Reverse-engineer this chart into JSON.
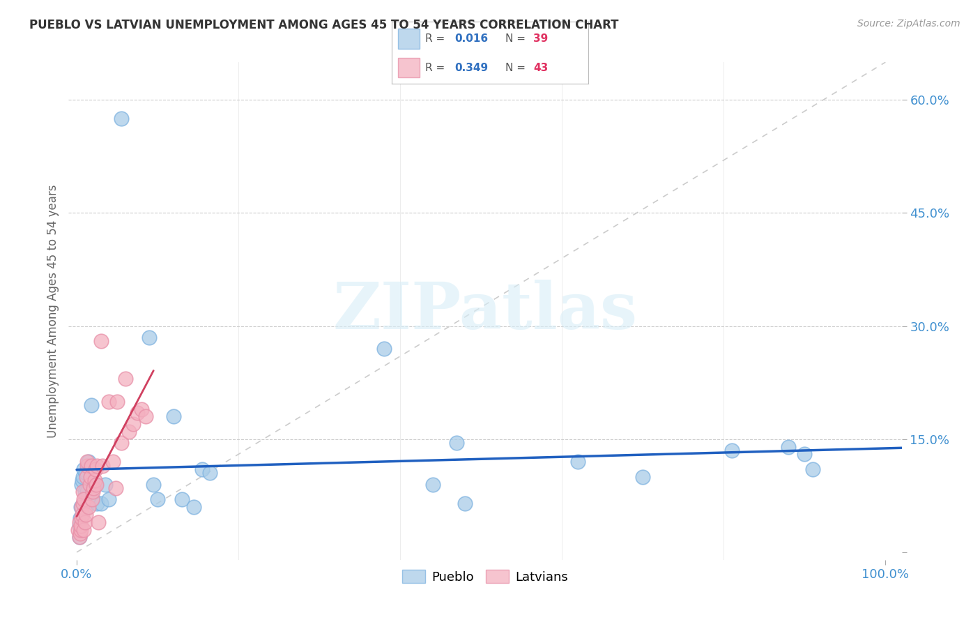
{
  "title": "PUEBLO VS LATVIAN UNEMPLOYMENT AMONG AGES 45 TO 54 YEARS CORRELATION CHART",
  "source": "Source: ZipAtlas.com",
  "ylabel": "Unemployment Among Ages 45 to 54 years",
  "xlim": [
    0,
    1.0
  ],
  "ylim": [
    0,
    0.65
  ],
  "xtick_positions": [
    0.0,
    1.0
  ],
  "xticklabels": [
    "0.0%",
    "100.0%"
  ],
  "ytick_positions": [
    0.0,
    0.15,
    0.3,
    0.45,
    0.6
  ],
  "yticklabels": [
    "",
    "15.0%",
    "30.0%",
    "45.0%",
    "60.0%"
  ],
  "pueblo_color": "#a8cce8",
  "pueblo_edge_color": "#7fb3e0",
  "latvian_color": "#f4b0c0",
  "latvian_edge_color": "#e890a8",
  "pueblo_R": "0.016",
  "pueblo_N": "39",
  "latvian_R": "0.349",
  "latvian_N": "43",
  "legend_R_color": "#3070c0",
  "legend_N_color": "#e03060",
  "watermark_text": "ZIPatlas",
  "pueblo_scatter_x": [
    0.055,
    0.003,
    0.003,
    0.004,
    0.005,
    0.006,
    0.007,
    0.008,
    0.009,
    0.01,
    0.011,
    0.012,
    0.013,
    0.015,
    0.018,
    0.02,
    0.022,
    0.025,
    0.03,
    0.035,
    0.04,
    0.09,
    0.095,
    0.1,
    0.12,
    0.13,
    0.145,
    0.155,
    0.165,
    0.38,
    0.44,
    0.47,
    0.48,
    0.62,
    0.7,
    0.81,
    0.88,
    0.9,
    0.91
  ],
  "pueblo_scatter_y": [
    0.575,
    0.02,
    0.035,
    0.045,
    0.06,
    0.09,
    0.095,
    0.1,
    0.11,
    0.08,
    0.105,
    0.06,
    0.08,
    0.12,
    0.195,
    0.07,
    0.09,
    0.065,
    0.065,
    0.09,
    0.07,
    0.285,
    0.09,
    0.07,
    0.18,
    0.07,
    0.06,
    0.11,
    0.105,
    0.27,
    0.09,
    0.145,
    0.065,
    0.12,
    0.1,
    0.135,
    0.14,
    0.13,
    0.11
  ],
  "latvian_scatter_x": [
    0.002,
    0.003,
    0.003,
    0.004,
    0.005,
    0.005,
    0.006,
    0.006,
    0.007,
    0.008,
    0.008,
    0.009,
    0.009,
    0.01,
    0.011,
    0.012,
    0.013,
    0.013,
    0.015,
    0.016,
    0.017,
    0.018,
    0.019,
    0.02,
    0.021,
    0.022,
    0.023,
    0.024,
    0.025,
    0.027,
    0.03,
    0.032,
    0.04,
    0.045,
    0.048,
    0.05,
    0.055,
    0.06,
    0.065,
    0.07,
    0.075,
    0.08,
    0.085
  ],
  "latvian_scatter_y": [
    0.03,
    0.02,
    0.04,
    0.025,
    0.03,
    0.035,
    0.045,
    0.06,
    0.05,
    0.065,
    0.08,
    0.03,
    0.07,
    0.04,
    0.05,
    0.1,
    0.115,
    0.12,
    0.06,
    0.09,
    0.1,
    0.115,
    0.07,
    0.08,
    0.085,
    0.095,
    0.11,
    0.09,
    0.115,
    0.04,
    0.28,
    0.115,
    0.2,
    0.12,
    0.085,
    0.2,
    0.145,
    0.23,
    0.16,
    0.17,
    0.185,
    0.19,
    0.18
  ],
  "background_color": "#ffffff",
  "grid_color": "#cccccc",
  "tick_label_color": "#4090d0",
  "ylabel_color": "#666666",
  "title_color": "#333333"
}
